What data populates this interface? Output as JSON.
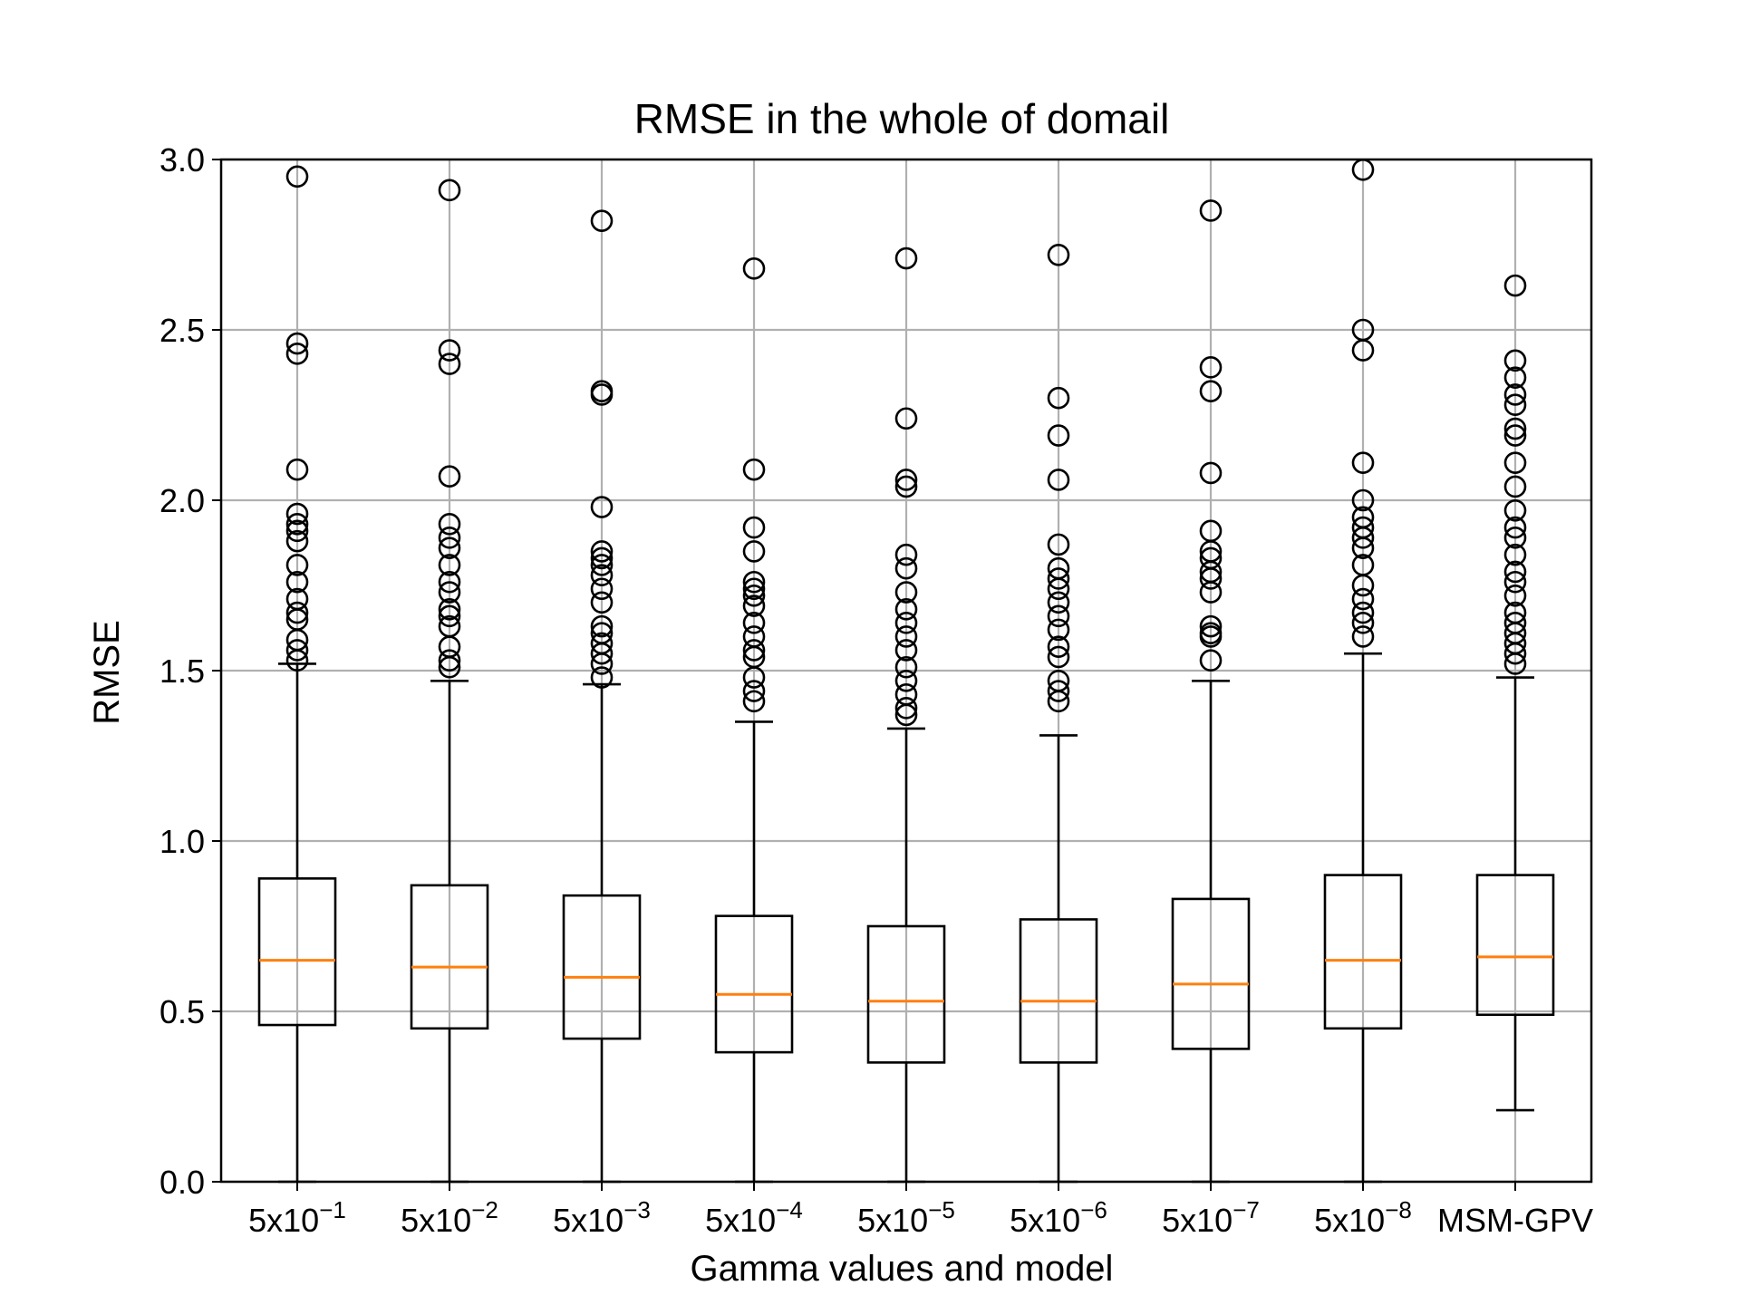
{
  "chart_data": {
    "type": "box",
    "title": "RMSE in the whole of domail",
    "xlabel": "Gamma values and model",
    "ylabel": "RMSE",
    "ylim": [
      0.0,
      3.0
    ],
    "yticks": [
      0.0,
      0.5,
      1.0,
      1.5,
      2.0,
      2.5,
      3.0
    ],
    "ytick_labels": [
      "0.0",
      "0.5",
      "1.0",
      "1.5",
      "2.0",
      "2.5",
      "3.0"
    ],
    "grid": true,
    "colors": {
      "box": "#000000",
      "median": "#ff7f0e",
      "grid": "#b0b0b0",
      "outlier": "#000000"
    },
    "categories": [
      {
        "base": "5x10",
        "exp": "−1"
      },
      {
        "base": "5x10",
        "exp": "−2"
      },
      {
        "base": "5x10",
        "exp": "−3"
      },
      {
        "base": "5x10",
        "exp": "−4"
      },
      {
        "base": "5x10",
        "exp": "−5"
      },
      {
        "base": "5x10",
        "exp": "−6"
      },
      {
        "base": "5x10",
        "exp": "−7"
      },
      {
        "base": "5x10",
        "exp": "−8"
      },
      {
        "base": "MSM-GPV",
        "exp": ""
      }
    ],
    "boxes": [
      {
        "whislo": 0.0,
        "q1": 0.46,
        "med": 0.65,
        "q3": 0.89,
        "whishi": 1.52,
        "fliers": [
          2.95,
          2.46,
          2.43,
          2.09,
          1.96,
          1.93,
          1.91,
          1.88,
          1.81,
          1.76,
          1.71,
          1.67,
          1.65,
          1.59,
          1.56,
          1.53
        ]
      },
      {
        "whislo": 0.0,
        "q1": 0.45,
        "med": 0.63,
        "q3": 0.87,
        "whishi": 1.47,
        "fliers": [
          2.91,
          2.44,
          2.4,
          2.07,
          1.93,
          1.89,
          1.86,
          1.81,
          1.76,
          1.73,
          1.68,
          1.66,
          1.63,
          1.57,
          1.53,
          1.51
        ]
      },
      {
        "whislo": 0.0,
        "q1": 0.42,
        "med": 0.6,
        "q3": 0.84,
        "whishi": 1.46,
        "fliers": [
          2.82,
          2.32,
          2.31,
          1.98,
          1.85,
          1.83,
          1.81,
          1.78,
          1.74,
          1.7,
          1.63,
          1.61,
          1.58,
          1.55,
          1.52,
          1.48
        ]
      },
      {
        "whislo": 0.0,
        "q1": 0.38,
        "med": 0.55,
        "q3": 0.78,
        "whishi": 1.35,
        "fliers": [
          2.68,
          2.09,
          1.92,
          1.85,
          1.76,
          1.74,
          1.72,
          1.69,
          1.64,
          1.6,
          1.56,
          1.54,
          1.48,
          1.44,
          1.41
        ]
      },
      {
        "whislo": 0.0,
        "q1": 0.35,
        "med": 0.53,
        "q3": 0.75,
        "whishi": 1.33,
        "fliers": [
          2.71,
          2.24,
          2.06,
          2.04,
          1.84,
          1.8,
          1.73,
          1.68,
          1.64,
          1.6,
          1.56,
          1.51,
          1.47,
          1.43,
          1.39,
          1.37
        ]
      },
      {
        "whislo": 0.0,
        "q1": 0.35,
        "med": 0.53,
        "q3": 0.77,
        "whishi": 1.31,
        "fliers": [
          2.72,
          2.3,
          2.19,
          2.06,
          1.87,
          1.8,
          1.77,
          1.74,
          1.7,
          1.66,
          1.62,
          1.57,
          1.54,
          1.47,
          1.44,
          1.41
        ]
      },
      {
        "whislo": 0.0,
        "q1": 0.39,
        "med": 0.58,
        "q3": 0.83,
        "whishi": 1.47,
        "fliers": [
          2.85,
          2.39,
          2.32,
          2.08,
          1.91,
          1.85,
          1.83,
          1.79,
          1.77,
          1.73,
          1.63,
          1.61,
          1.6,
          1.53
        ]
      },
      {
        "whislo": 0.0,
        "q1": 0.45,
        "med": 0.65,
        "q3": 0.9,
        "whishi": 1.55,
        "fliers": [
          2.97,
          2.5,
          2.44,
          2.11,
          2.0,
          1.95,
          1.92,
          1.89,
          1.86,
          1.81,
          1.75,
          1.71,
          1.67,
          1.64,
          1.6
        ]
      },
      {
        "whislo": 0.21,
        "q1": 0.49,
        "med": 0.66,
        "q3": 0.9,
        "whishi": 1.48,
        "fliers": [
          2.63,
          2.41,
          2.36,
          2.31,
          2.28,
          2.21,
          2.19,
          2.11,
          2.04,
          1.97,
          1.92,
          1.89,
          1.84,
          1.79,
          1.76,
          1.72,
          1.67,
          1.64,
          1.61,
          1.58,
          1.55,
          1.52
        ]
      }
    ]
  }
}
